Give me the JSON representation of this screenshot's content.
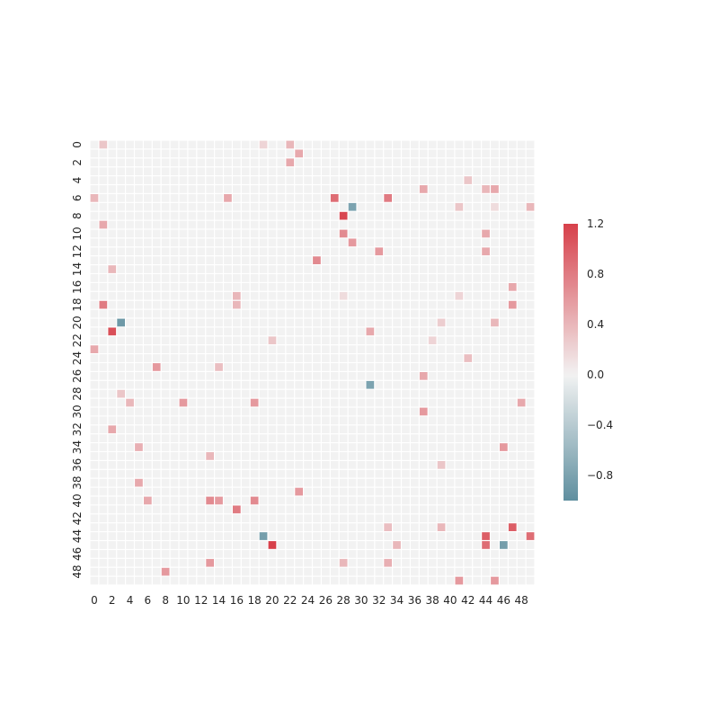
{
  "chart_data": {
    "type": "heatmap",
    "title": "",
    "xlabel": "",
    "ylabel": "",
    "rows": 50,
    "cols": 50,
    "x_tick_labels": [
      "0",
      "2",
      "4",
      "6",
      "8",
      "10",
      "12",
      "14",
      "16",
      "18",
      "20",
      "22",
      "24",
      "26",
      "28",
      "30",
      "32",
      "34",
      "36",
      "38",
      "40",
      "42",
      "44",
      "46",
      "48"
    ],
    "y_tick_labels": [
      "0",
      "2",
      "4",
      "6",
      "8",
      "10",
      "12",
      "14",
      "16",
      "18",
      "20",
      "22",
      "24",
      "26",
      "28",
      "30",
      "32",
      "34",
      "36",
      "38",
      "40",
      "42",
      "44",
      "46",
      "48"
    ],
    "background_value": 0,
    "cells": [
      [
        0,
        1,
        0.3
      ],
      [
        0,
        19,
        0.2
      ],
      [
        0,
        22,
        0.4
      ],
      [
        1,
        23,
        0.5
      ],
      [
        2,
        22,
        0.5
      ],
      [
        4,
        42,
        0.3
      ],
      [
        5,
        37,
        0.5
      ],
      [
        5,
        44,
        0.4
      ],
      [
        5,
        45,
        0.5
      ],
      [
        6,
        0,
        0.4
      ],
      [
        6,
        15,
        0.5
      ],
      [
        6,
        27,
        0.9
      ],
      [
        6,
        33,
        0.8
      ],
      [
        7,
        29,
        -0.8
      ],
      [
        7,
        41,
        0.3
      ],
      [
        7,
        45,
        0.15
      ],
      [
        7,
        49,
        0.4
      ],
      [
        8,
        28,
        1.15
      ],
      [
        9,
        1,
        0.5
      ],
      [
        10,
        28,
        0.7
      ],
      [
        10,
        44,
        0.5
      ],
      [
        11,
        29,
        0.6
      ],
      [
        12,
        32,
        0.6
      ],
      [
        12,
        44,
        0.5
      ],
      [
        13,
        25,
        0.7
      ],
      [
        14,
        2,
        0.4
      ],
      [
        16,
        47,
        0.5
      ],
      [
        17,
        16,
        0.4
      ],
      [
        17,
        28,
        0.15
      ],
      [
        17,
        41,
        0.2
      ],
      [
        18,
        1,
        0.8
      ],
      [
        18,
        16,
        0.4
      ],
      [
        18,
        47,
        0.6
      ],
      [
        20,
        3,
        -0.9
      ],
      [
        20,
        39,
        0.25
      ],
      [
        20,
        45,
        0.4
      ],
      [
        21,
        2,
        1.1
      ],
      [
        21,
        31,
        0.5
      ],
      [
        22,
        20,
        0.3
      ],
      [
        22,
        38,
        0.2
      ],
      [
        23,
        0,
        0.5
      ],
      [
        24,
        42,
        0.35
      ],
      [
        25,
        7,
        0.6
      ],
      [
        25,
        14,
        0.35
      ],
      [
        26,
        37,
        0.5
      ],
      [
        27,
        31,
        -0.8
      ],
      [
        28,
        3,
        0.3
      ],
      [
        29,
        4,
        0.4
      ],
      [
        29,
        10,
        0.6
      ],
      [
        29,
        18,
        0.6
      ],
      [
        29,
        48,
        0.5
      ],
      [
        30,
        37,
        0.6
      ],
      [
        32,
        2,
        0.5
      ],
      [
        34,
        5,
        0.45
      ],
      [
        34,
        46,
        0.6
      ],
      [
        35,
        13,
        0.4
      ],
      [
        36,
        39,
        0.3
      ],
      [
        38,
        5,
        0.5
      ],
      [
        39,
        23,
        0.6
      ],
      [
        40,
        6,
        0.5
      ],
      [
        40,
        13,
        0.7
      ],
      [
        40,
        14,
        0.6
      ],
      [
        40,
        18,
        0.7
      ],
      [
        41,
        16,
        0.8
      ],
      [
        43,
        39,
        0.4
      ],
      [
        43,
        33,
        0.35
      ],
      [
        43,
        47,
        1.0
      ],
      [
        44,
        19,
        -0.85
      ],
      [
        44,
        44,
        1.0
      ],
      [
        44,
        49,
        0.9
      ],
      [
        45,
        20,
        1.2
      ],
      [
        45,
        34,
        0.4
      ],
      [
        45,
        44,
        0.9
      ],
      [
        45,
        46,
        -0.85
      ],
      [
        47,
        13,
        0.6
      ],
      [
        47,
        28,
        0.4
      ],
      [
        47,
        33,
        0.45
      ],
      [
        48,
        8,
        0.6
      ],
      [
        49,
        41,
        0.6
      ],
      [
        49,
        45,
        0.6
      ]
    ],
    "colorbar": {
      "vmin": -1.0,
      "vmax": 1.2,
      "tick_values": [
        1.2,
        0.8,
        0.4,
        0.0,
        -0.4,
        -0.8
      ],
      "tick_labels": [
        "1.2",
        "0.8",
        "0.4",
        "0.0",
        "−0.4",
        "−0.8"
      ]
    },
    "colormap": {
      "negative": "#5f8f9f",
      "zero": "#f2f2f2",
      "positive": "#d7404a"
    },
    "grid_line_color": "#ffffff"
  }
}
